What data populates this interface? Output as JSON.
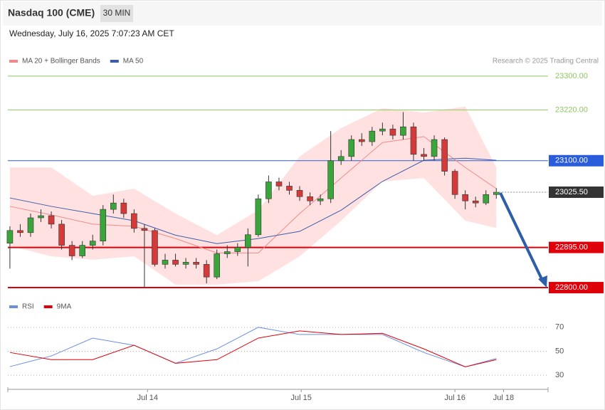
{
  "chart_data": [
    {
      "type": "candlestick",
      "title": "Nasdaq 100 (CME)",
      "interval": "30 MIN",
      "timestamp": "Wednesday, July 16, 2025 7:07:23 AM CET",
      "credit": "Research © 2025 Trading Central",
      "up_color": "#3aa53a",
      "down_color": "#d43a3a",
      "open": [
        22905,
        22935,
        22930,
        22965,
        22970,
        22950,
        22900,
        22875,
        22900,
        22910,
        22985,
        23000,
        22975,
        22940,
        22935,
        22855,
        22865,
        22855,
        22860,
        22855,
        22825,
        22880,
        22885,
        22895,
        22925,
        23010,
        23050,
        23040,
        23030,
        23015,
        23005,
        23010,
        23100,
        23110,
        23150,
        23145,
        23170,
        23175,
        23160,
        23180,
        23115,
        23110,
        23150,
        23075,
        23020,
        23005,
        23000,
        23020
      ],
      "high": [
        22945,
        22950,
        22975,
        22985,
        22980,
        22960,
        22910,
        22910,
        22925,
        22995,
        23020,
        23010,
        22985,
        22950,
        22940,
        22880,
        22880,
        22870,
        22870,
        22865,
        22890,
        22900,
        22905,
        22940,
        23020,
        23065,
        23060,
        23050,
        23040,
        23025,
        23020,
        23170,
        23125,
        23160,
        23165,
        23180,
        23190,
        23185,
        23215,
        23190,
        23130,
        23160,
        23155,
        23080,
        23030,
        23015,
        23030,
        23035
      ],
      "low": [
        22845,
        22920,
        22920,
        22955,
        22940,
        22890,
        22865,
        22870,
        22890,
        22900,
        22975,
        22965,
        22930,
        22800,
        22850,
        22845,
        22850,
        22845,
        22845,
        22810,
        22820,
        22870,
        22875,
        22850,
        22920,
        23000,
        23030,
        23020,
        23005,
        22995,
        22995,
        23000,
        23090,
        23100,
        23135,
        23135,
        23160,
        23150,
        23150,
        23100,
        23100,
        23100,
        23065,
        23010,
        22985,
        22990,
        22995,
        23010
      ],
      "close": [
        22935,
        22930,
        22965,
        22970,
        22950,
        22900,
        22875,
        22900,
        22910,
        22985,
        23000,
        22975,
        22940,
        22935,
        22855,
        22865,
        22855,
        22860,
        22855,
        22825,
        22880,
        22885,
        22895,
        22925,
        23010,
        23050,
        23040,
        23030,
        23015,
        23005,
        23010,
        23100,
        23110,
        23150,
        23145,
        23170,
        23175,
        23160,
        23180,
        23115,
        23110,
        23150,
        23075,
        23020,
        23005,
        23000,
        23020,
        23025.5
      ],
      "series": [
        {
          "name": "MA 20 + Bollinger Bands",
          "color": "#f08a8a",
          "band_color": "#ffd9d9",
          "x": [
            0,
            4,
            8,
            12,
            16,
            20,
            24,
            28,
            32,
            36,
            40,
            44,
            47
          ],
          "values": [
            22992,
            22972,
            22950,
            22945,
            22916,
            22882,
            22882,
            22975,
            23059,
            23143,
            23157,
            23084,
            23034
          ],
          "upper": [
            23084,
            23084,
            23017,
            23034,
            22975,
            22924,
            22983,
            23110,
            23177,
            23224,
            23214,
            23228,
            23084
          ],
          "lower": [
            22899,
            22874,
            22866,
            22874,
            22807,
            22807,
            22815,
            22874,
            22958,
            23051,
            23059,
            22958,
            22941
          ]
        },
        {
          "name": "MA 50",
          "color": "#3a5ca8",
          "x": [
            0,
            4,
            8,
            12,
            16,
            20,
            24,
            28,
            32,
            36,
            40,
            44,
            47
          ],
          "values": [
            23012,
            22992,
            22975,
            22958,
            22924,
            22904,
            22916,
            22933,
            22983,
            23051,
            23101,
            23106,
            23101
          ]
        }
      ],
      "levels": [
        {
          "value": 23300,
          "label": "23300.00",
          "color": "#8cc860",
          "style": "text"
        },
        {
          "value": 23220,
          "label": "23220.00",
          "color": "#8cc860",
          "style": "text"
        },
        {
          "value": 23100,
          "label": "23100.00",
          "color": "#2a5cdb",
          "style": "box"
        },
        {
          "value": 22895,
          "label": "22895.00",
          "color": "#e0000a",
          "style": "box"
        },
        {
          "value": 22800,
          "label": "22800.00",
          "color": "#e0000a",
          "style": "box"
        }
      ],
      "last": {
        "value": 23025.5,
        "label": "23025.50",
        "color": "#333333"
      },
      "xlim": [
        -0.2,
        52
      ],
      "ylim": [
        22790,
        23320
      ]
    },
    {
      "type": "line",
      "series": [
        {
          "name": "RSI",
          "color": "#6a8fe0",
          "x": [
            0,
            4,
            8,
            12,
            16,
            20,
            24,
            28,
            32,
            36,
            40,
            44,
            47
          ],
          "values": [
            37.2,
            46.1,
            61,
            55,
            40,
            52,
            70,
            64,
            64,
            64,
            49,
            37,
            44
          ]
        },
        {
          "name": "9MA",
          "color": "#e0000a",
          "x": [
            0,
            4,
            8,
            12,
            16,
            20,
            24,
            28,
            32,
            36,
            40,
            44,
            47
          ],
          "values": [
            49,
            43,
            43,
            55,
            40,
            43,
            61,
            67,
            64,
            65,
            52,
            37,
            43
          ]
        }
      ],
      "xlim": [
        -0.2,
        52
      ],
      "ylim": [
        20,
        80
      ],
      "yticks": [
        30,
        50,
        70
      ],
      "xticks": [
        {
          "value": 13.3,
          "label": "Jul 14"
        },
        {
          "value": 28.15,
          "label": "Jul 15"
        },
        {
          "value": 43,
          "label": "Jul 16"
        },
        {
          "value": 47.7,
          "label": "Jul 18"
        }
      ]
    }
  ]
}
